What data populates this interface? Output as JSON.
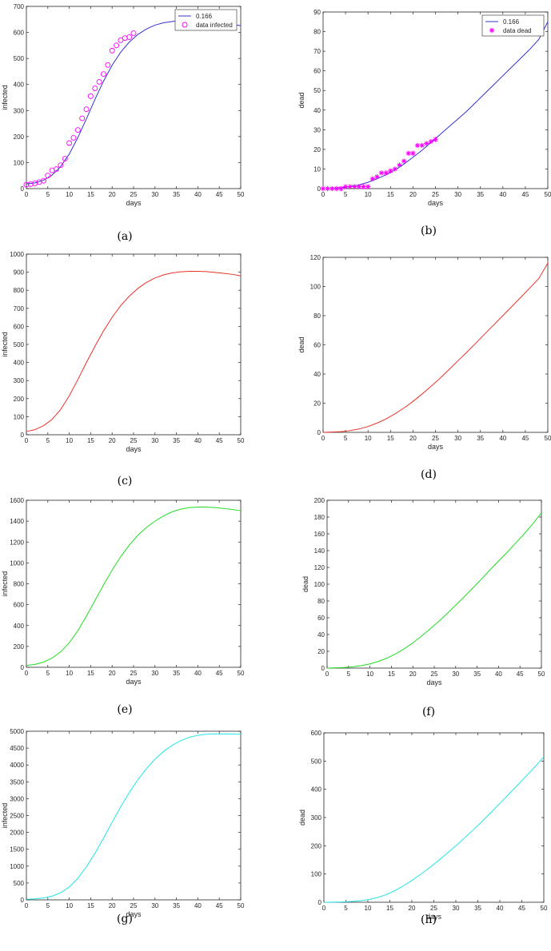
{
  "chart_data": [
    {
      "type": "line",
      "caption": "(a)",
      "xlabel": "days",
      "ylabel": "infected",
      "xlim": [
        0,
        50
      ],
      "ylim": [
        0,
        700
      ],
      "xticks": [
        "0",
        "5",
        "10",
        "15",
        "20",
        "25",
        "30",
        "35",
        "40",
        "45",
        "50"
      ],
      "yticks": [
        "0",
        "100",
        "200",
        "300",
        "400",
        "500",
        "600",
        "700"
      ],
      "legend": {
        "position": "top-right",
        "entries": [
          "0.166",
          "data infected"
        ]
      },
      "series": [
        {
          "name": "0.166",
          "kind": "line",
          "color": "#3333cc",
          "x": [
            0,
            2,
            4,
            6,
            8,
            10,
            12,
            14,
            16,
            18,
            20,
            22,
            24,
            26,
            28,
            30,
            32,
            34,
            36,
            38,
            40,
            42,
            44,
            46,
            48,
            50
          ],
          "y": [
            18,
            22,
            32,
            52,
            85,
            133,
            196,
            268,
            343,
            413,
            474,
            524,
            563,
            592,
            613,
            628,
            637,
            642,
            645,
            646,
            645,
            643,
            640,
            636,
            631,
            626
          ]
        },
        {
          "name": "data infected",
          "kind": "markers",
          "marker": "circle",
          "color": "#ff00ff",
          "x": [
            0,
            1,
            2,
            3,
            4,
            5,
            6,
            7,
            8,
            9,
            10,
            11,
            12,
            13,
            14,
            15,
            16,
            17,
            18,
            19,
            20,
            21,
            22,
            23,
            24,
            25
          ],
          "y": [
            15,
            17,
            20,
            25,
            30,
            50,
            70,
            75,
            90,
            115,
            175,
            195,
            225,
            270,
            305,
            355,
            385,
            410,
            440,
            475,
            530,
            550,
            570,
            578,
            582,
            597
          ]
        }
      ]
    },
    {
      "type": "line",
      "caption": "(b)",
      "xlabel": "days",
      "ylabel": "dead",
      "xlim": [
        0,
        50
      ],
      "ylim": [
        0,
        90
      ],
      "xticks": [
        "0",
        "5",
        "10",
        "15",
        "20",
        "25",
        "30",
        "35",
        "40",
        "45",
        "50"
      ],
      "yticks": [
        "0",
        "10",
        "20",
        "30",
        "40",
        "50",
        "60",
        "70",
        "80",
        "90"
      ],
      "legend": {
        "position": "top-right",
        "entries": [
          "0.166",
          "data dead"
        ]
      },
      "series": [
        {
          "name": "0.166",
          "kind": "line",
          "color": "#3333cc",
          "x": [
            0,
            2,
            4,
            6,
            8,
            10,
            12,
            14,
            16,
            18,
            20,
            22,
            24,
            26,
            28,
            30,
            32,
            34,
            36,
            38,
            40,
            42,
            44,
            46,
            48,
            50
          ],
          "y": [
            0,
            0.1,
            0.4,
            1,
            1.9,
            3.2,
            5,
            7,
            9.5,
            12.5,
            16,
            19.5,
            23.5,
            27.5,
            31.5,
            35.5,
            39.5,
            44,
            48.5,
            53,
            57.5,
            62,
            66.5,
            71,
            76,
            85
          ]
        },
        {
          "name": "data dead",
          "kind": "markers",
          "marker": "star",
          "color": "#ff00ff",
          "x": [
            0,
            1,
            2,
            3,
            4,
            5,
            6,
            7,
            8,
            9,
            10,
            11,
            12,
            13,
            14,
            15,
            16,
            17,
            18,
            19,
            20,
            21,
            22,
            23,
            24,
            25
          ],
          "y": [
            0,
            0,
            0,
            0,
            0,
            1,
            1,
            1,
            1,
            1,
            1,
            5,
            6,
            8,
            8,
            9,
            10,
            12,
            14,
            18,
            18,
            22,
            22,
            23,
            24,
            25
          ]
        }
      ]
    },
    {
      "type": "line",
      "caption": "(c)",
      "xlabel": "days",
      "ylabel": "infected",
      "xlim": [
        0,
        50
      ],
      "ylim": [
        0,
        1000
      ],
      "xticks": [
        "0",
        "5",
        "10",
        "15",
        "20",
        "25",
        "30",
        "35",
        "40",
        "45",
        "50"
      ],
      "yticks": [
        "0",
        "100",
        "200",
        "300",
        "400",
        "500",
        "600",
        "700",
        "800",
        "900",
        "1000"
      ],
      "series": [
        {
          "kind": "line",
          "color": "#e8342a",
          "x": [
            0,
            2,
            4,
            6,
            8,
            10,
            12,
            14,
            16,
            18,
            20,
            22,
            24,
            26,
            28,
            30,
            32,
            34,
            36,
            38,
            40,
            42,
            44,
            46,
            48,
            50
          ],
          "y": [
            18,
            28,
            50,
            85,
            140,
            215,
            305,
            400,
            490,
            575,
            650,
            715,
            767,
            810,
            843,
            868,
            885,
            896,
            902,
            905,
            905,
            903,
            899,
            894,
            888,
            880
          ]
        }
      ]
    },
    {
      "type": "line",
      "caption": "(d)",
      "xlabel": "days",
      "ylabel": "dead",
      "xlim": [
        0,
        50
      ],
      "ylim": [
        0,
        120
      ],
      "xticks": [
        "0",
        "5",
        "10",
        "15",
        "20",
        "25",
        "30",
        "35",
        "40",
        "45",
        "50"
      ],
      "yticks": [
        "0",
        "20",
        "40",
        "60",
        "80",
        "100",
        "120"
      ],
      "series": [
        {
          "kind": "line",
          "color": "#e8342a",
          "x": [
            0,
            2,
            4,
            6,
            8,
            10,
            12,
            14,
            16,
            18,
            20,
            22,
            24,
            26,
            28,
            30,
            32,
            34,
            36,
            38,
            40,
            42,
            44,
            46,
            48,
            50
          ],
          "y": [
            0,
            0.2,
            0.5,
            1.2,
            2.3,
            4,
            6.3,
            9.2,
            12.7,
            16.7,
            21.2,
            26.2,
            31.5,
            37,
            43,
            49,
            55,
            61.2,
            67.5,
            73.8,
            80,
            86.3,
            92.6,
            99,
            105.5,
            116
          ]
        }
      ]
    },
    {
      "type": "line",
      "caption": "(e)",
      "xlabel": "days",
      "ylabel": "infected",
      "xlim": [
        0,
        50
      ],
      "ylim": [
        0,
        1600
      ],
      "xticks": [
        "0",
        "5",
        "10",
        "15",
        "20",
        "25",
        "30",
        "35",
        "40",
        "45",
        "50"
      ],
      "yticks": [
        "0",
        "200",
        "400",
        "600",
        "800",
        "1000",
        "1200",
        "1400",
        "1600"
      ],
      "series": [
        {
          "kind": "line",
          "color": "#22dd22",
          "x": [
            0,
            2,
            4,
            6,
            8,
            10,
            12,
            14,
            16,
            18,
            20,
            22,
            24,
            26,
            28,
            30,
            32,
            34,
            36,
            38,
            40,
            42,
            44,
            46,
            48,
            50
          ],
          "y": [
            18,
            28,
            50,
            88,
            148,
            235,
            350,
            490,
            640,
            790,
            930,
            1060,
            1170,
            1265,
            1340,
            1400,
            1450,
            1490,
            1515,
            1530,
            1535,
            1535,
            1530,
            1522,
            1512,
            1500
          ]
        }
      ]
    },
    {
      "type": "line",
      "caption": "(f)",
      "xlabel": "days",
      "ylabel": "dead",
      "xlim": [
        0,
        50
      ],
      "ylim": [
        0,
        200
      ],
      "xticks": [
        "0",
        "5",
        "10",
        "15",
        "20",
        "25",
        "30",
        "35",
        "40",
        "45",
        "50"
      ],
      "yticks": [
        "0",
        "20",
        "40",
        "60",
        "80",
        "100",
        "120",
        "140",
        "160",
        "180",
        "200"
      ],
      "series": [
        {
          "kind": "line",
          "color": "#22dd22",
          "x": [
            0,
            2,
            4,
            6,
            8,
            10,
            12,
            14,
            16,
            18,
            20,
            22,
            24,
            26,
            28,
            30,
            32,
            34,
            36,
            38,
            40,
            42,
            44,
            46,
            48,
            50
          ],
          "y": [
            0,
            0.3,
            0.7,
            1.5,
            3,
            5,
            8,
            12,
            17,
            23,
            30,
            38,
            46.5,
            55.5,
            65,
            75,
            85,
            95.5,
            106,
            117,
            127.5,
            138,
            149,
            160,
            172,
            185
          ]
        }
      ]
    },
    {
      "type": "line",
      "caption": "(g)",
      "xlabel": "days",
      "ylabel": "infected",
      "xlim": [
        0,
        50
      ],
      "ylim": [
        0,
        5000
      ],
      "xticks": [
        "0",
        "5",
        "10",
        "15",
        "20",
        "25",
        "30",
        "35",
        "40",
        "45",
        "50"
      ],
      "yticks": [
        "0",
        "500",
        "1000",
        "1500",
        "2000",
        "2500",
        "3000",
        "3500",
        "4000",
        "4500",
        "5000"
      ],
      "series": [
        {
          "kind": "line",
          "color": "#22e5e5",
          "x": [
            0,
            2,
            4,
            6,
            8,
            10,
            12,
            14,
            16,
            18,
            20,
            22,
            24,
            26,
            28,
            30,
            32,
            34,
            36,
            38,
            40,
            42,
            44,
            46,
            48,
            50
          ],
          "y": [
            18,
            30,
            55,
            110,
            210,
            380,
            640,
            980,
            1380,
            1830,
            2300,
            2760,
            3180,
            3560,
            3890,
            4170,
            4400,
            4580,
            4720,
            4820,
            4880,
            4910,
            4920,
            4920,
            4915,
            4910
          ]
        }
      ]
    },
    {
      "type": "line",
      "caption": "(h)",
      "xlabel": "days",
      "ylabel": "dead",
      "xlim": [
        0,
        50
      ],
      "ylim": [
        0,
        600
      ],
      "xticks": [
        "0",
        "5",
        "10",
        "15",
        "20",
        "25",
        "30",
        "35",
        "40",
        "45",
        "50"
      ],
      "yticks": [
        "0",
        "100",
        "200",
        "300",
        "400",
        "500",
        "600"
      ],
      "series": [
        {
          "kind": "line",
          "color": "#22e5e5",
          "x": [
            0,
            2,
            4,
            6,
            8,
            10,
            12,
            14,
            16,
            18,
            20,
            22,
            24,
            26,
            28,
            30,
            32,
            34,
            36,
            38,
            40,
            42,
            44,
            46,
            48,
            50
          ],
          "y": [
            0,
            0.5,
            1,
            2.5,
            5,
            9,
            16,
            26,
            40,
            57,
            77,
            99,
            122,
            147,
            173,
            200,
            228,
            257,
            287,
            318,
            350,
            382,
            414,
            447,
            480,
            515
          ]
        }
      ]
    }
  ]
}
